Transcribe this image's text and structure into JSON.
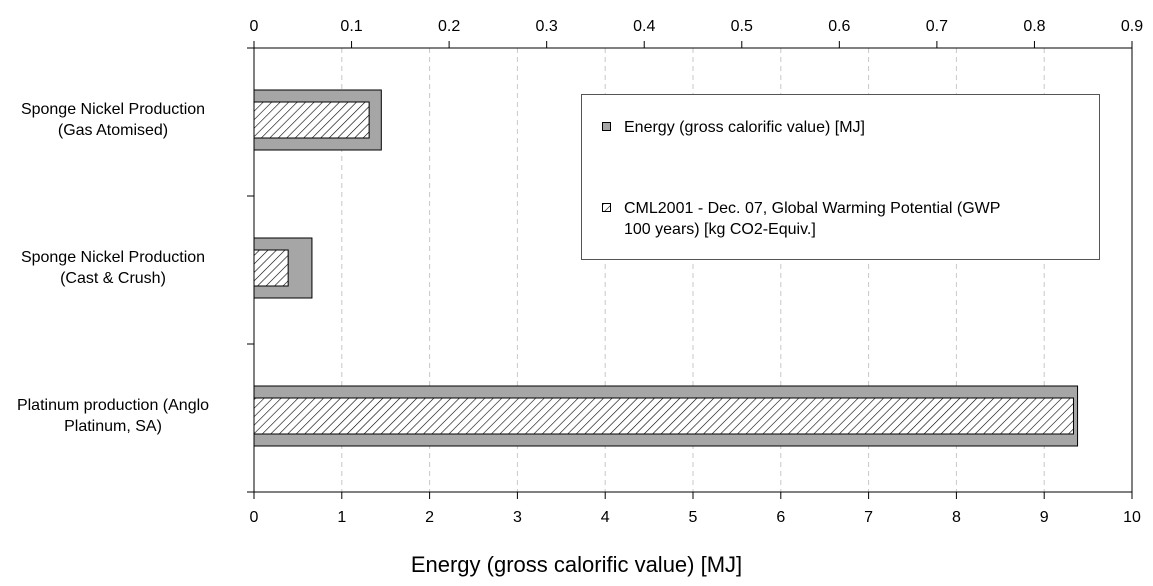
{
  "chart_data": {
    "type": "bar",
    "orientation": "horizontal",
    "categories": [
      "Sponge Nickel Production (Gas Atomised)",
      "Sponge Nickel Production (Cast & Crush)",
      "Platinum production (Anglo Platinum, SA)"
    ],
    "category_lines": [
      [
        "Sponge Nickel Production",
        "(Gas Atomised)"
      ],
      [
        "Sponge Nickel Production",
        "(Cast & Crush)"
      ],
      [
        "Platinum production (Anglo",
        "Platinum, SA)"
      ]
    ],
    "series": [
      {
        "name": "Energy (gross calorific value) [MJ]",
        "axis": "bottom",
        "values": [
          1.45,
          0.66,
          9.38
        ],
        "color": "#a6a6a6",
        "pattern": "solid"
      },
      {
        "name": "CML2001 - Dec. 07, Global Warming Potential (GWP 100 years) [kg CO2-Equiv.]",
        "legend_lines": [
          "CML2001 - Dec. 07, Global Warming Potential (GWP",
          "100 years) [kg CO2-Equiv.]"
        ],
        "axis": "top",
        "values": [
          0.118,
          0.035,
          0.84
        ],
        "color": "#ffffff",
        "pattern": "hatched"
      }
    ],
    "xlabel": "Energy (gross calorific value) [MJ]",
    "x_bottom": {
      "lim": [
        0,
        10
      ],
      "ticks": [
        "0",
        "1",
        "2",
        "3",
        "4",
        "5",
        "6",
        "7",
        "8",
        "9",
        "10"
      ]
    },
    "x_top": {
      "lim": [
        0,
        0.9
      ],
      "ticks": [
        "0",
        "0.1",
        "0.2",
        "0.3",
        "0.4",
        "0.5",
        "0.6",
        "0.7",
        "0.8",
        "0.9"
      ]
    },
    "grid": "vertical dashed",
    "legend_position": "upper-right"
  }
}
